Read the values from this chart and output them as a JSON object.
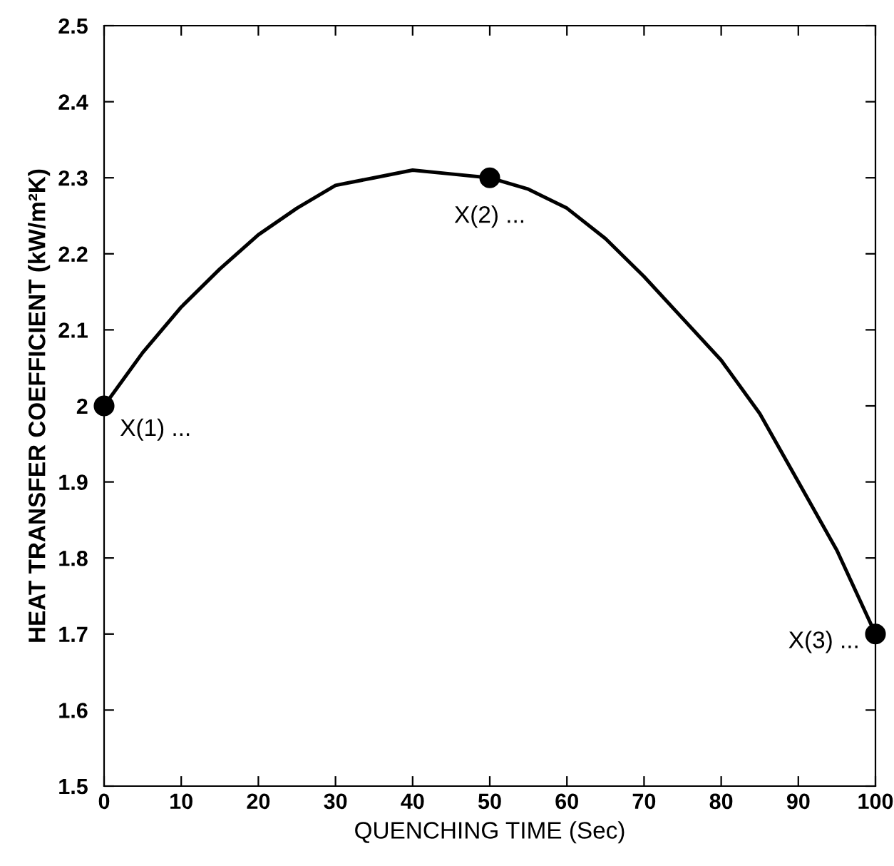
{
  "chart_data": {
    "type": "line",
    "xlabel": "QUENCHING TIME (Sec)",
    "ylabel": "HEAT TRANSFER COEFFICIENT (kW/m²K)",
    "xlim": [
      0,
      100
    ],
    "xticks": [
      0,
      10,
      20,
      30,
      40,
      50,
      60,
      70,
      80,
      90,
      100
    ],
    "ylim": [
      1.5,
      2.5
    ],
    "yticks": [
      1.5,
      1.6,
      1.7,
      1.8,
      1.9,
      2,
      2.1,
      2.2,
      2.3,
      2.4,
      2.5
    ],
    "grid": false,
    "legend": false,
    "series": [
      {
        "color": "#000000",
        "marker": "none",
        "line_style": "solid",
        "x": [
          0,
          5,
          10,
          15,
          20,
          25,
          30,
          35,
          40,
          45,
          50,
          55,
          60,
          65,
          70,
          75,
          80,
          85,
          90,
          95,
          100
        ],
        "values": [
          2.0,
          2.07,
          2.13,
          2.18,
          2.225,
          2.26,
          2.29,
          2.3,
          2.31,
          2.305,
          2.3,
          2.285,
          2.26,
          2.22,
          2.17,
          2.115,
          2.06,
          1.99,
          1.9,
          1.81,
          1.7
        ]
      },
      {
        "type": "scatter",
        "color": "#000000",
        "marker": "circle",
        "x": [
          0,
          50,
          100
        ],
        "values": [
          2.0,
          2.3,
          1.7
        ]
      }
    ],
    "annotations": [
      {
        "text": "X(1) ...",
        "x": 0,
        "y": 2.0
      },
      {
        "text": "X(2) ...",
        "x": 50,
        "y": 2.3
      },
      {
        "text": "X(3) ...",
        "x": 100,
        "y": 1.7
      }
    ]
  }
}
